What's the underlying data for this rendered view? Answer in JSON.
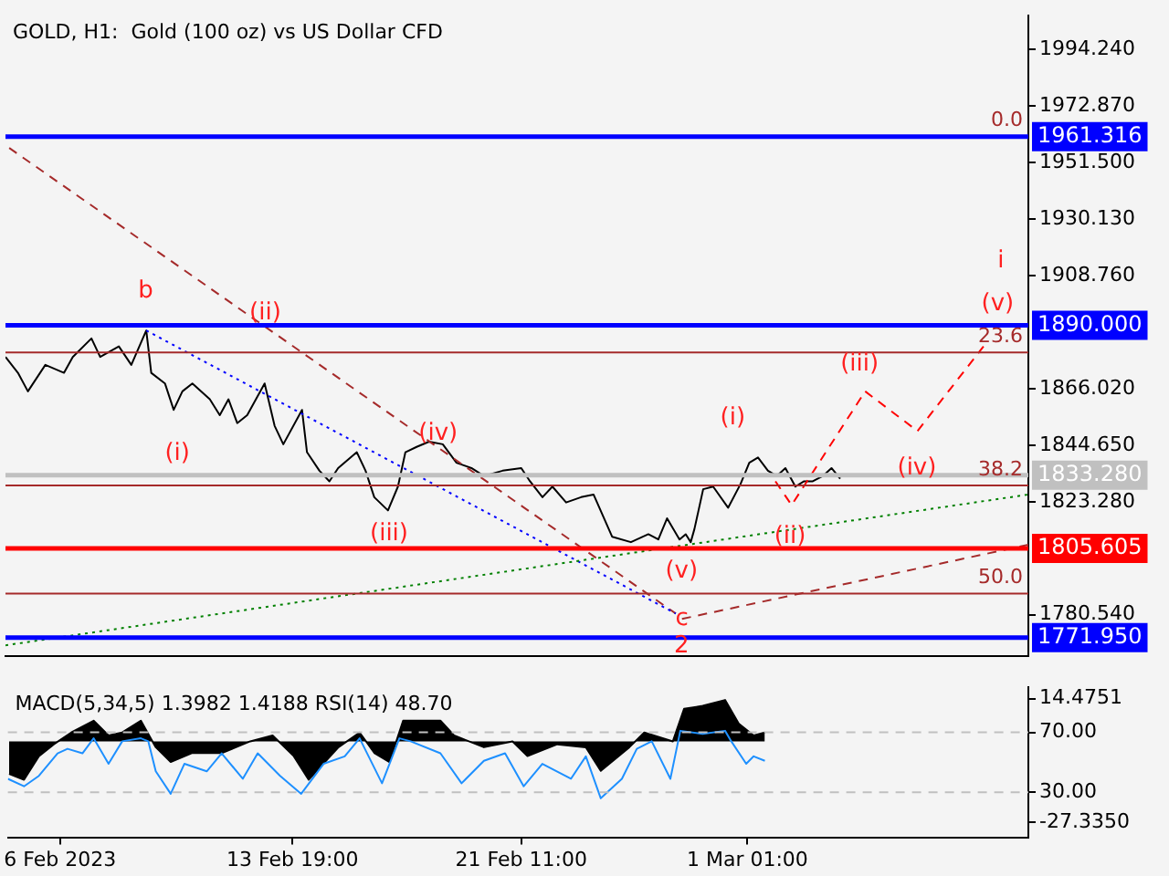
{
  "chart_data": [
    {
      "type": "line",
      "title": "GOLD, H1:  Gold (100 oz) vs US Dollar CFD",
      "tick_labels": "y",
      "marker": "none",
      "xlim": [
        "2023-02-04T06:00",
        "2023-03-10T11:00"
      ],
      "ylim": [
        1765,
        2007
      ],
      "yticks": [
        {
          "value": 1994.24,
          "label": "1994.240"
        },
        {
          "value": 1972.87,
          "label": "1972.870"
        },
        {
          "value": 1951.5,
          "label": "1951.500"
        },
        {
          "value": 1930.13,
          "label": "1930.130"
        },
        {
          "value": 1908.76,
          "label": "1908.760"
        },
        {
          "value": 1866.02,
          "label": "1866.020"
        },
        {
          "value": 1844.65,
          "label": "1844.650"
        },
        {
          "value": 1823.28,
          "label": "1823.280"
        },
        {
          "value": 1780.54,
          "label": "1780.540"
        }
      ],
      "series": [
        {
          "color": "#000000",
          "line_style": "solid",
          "x": [
            "2023-02-04T06:00",
            "2023-02-04T16:00",
            "2023-02-05T00:00",
            "2023-02-05T14:00",
            "2023-02-06T05:00",
            "2023-02-06T12:00",
            "2023-02-07T03:00",
            "2023-02-07T10:00",
            "2023-02-08T01:00",
            "2023-02-08T11:00",
            "2023-02-08T23:00",
            "2023-02-09T03:00",
            "2023-02-09T14:00",
            "2023-02-09T21:00",
            "2023-02-10T04:00",
            "2023-02-10T12:00",
            "2023-02-11T02:00",
            "2023-02-11T10:00",
            "2023-02-11T17:00",
            "2023-02-12T00:00",
            "2023-02-12T08:00",
            "2023-02-12T22:00",
            "2023-02-13T06:00",
            "2023-02-13T13:00",
            "2023-02-14T04:00",
            "2023-02-14T08:00",
            "2023-02-14T18:00",
            "2023-02-15T02:00",
            "2023-02-15T09:00",
            "2023-02-16T00:00",
            "2023-02-16T07:00",
            "2023-02-16T14:00",
            "2023-02-17T01:00",
            "2023-02-17T09:00",
            "2023-02-17T15:00",
            "2023-02-18T00:00",
            "2023-02-18T10:00",
            "2023-02-18T21:00",
            "2023-02-19T08:00",
            "2023-02-19T20:00",
            "2023-02-20T06:00",
            "2023-02-20T21:00",
            "2023-02-21T12:00",
            "2023-02-21T19:00",
            "2023-02-22T05:00",
            "2023-02-22T13:00",
            "2023-02-23T00:00",
            "2023-02-23T12:00",
            "2023-02-23T22:00",
            "2023-02-24T13:00",
            "2023-02-25T04:00",
            "2023-02-25T18:00",
            "2023-02-26T02:00",
            "2023-02-26T09:00",
            "2023-02-26T19:00",
            "2023-02-27T00:00",
            "2023-02-27T04:00",
            "2023-02-27T07:00",
            "2023-02-27T14:00",
            "2023-02-27T22:00",
            "2023-02-28T10:00",
            "2023-02-28T20:00",
            "2023-03-01T03:00",
            "2023-03-01T10:00",
            "2023-03-01T18:00",
            "2023-03-02T01:00",
            "2023-03-02T08:00",
            "2023-03-02T16:00",
            "2023-03-02T23:00",
            "2023-03-03T06:00",
            "2023-03-03T14:00",
            "2023-03-03T21:00",
            "2023-03-04T04:00"
          ],
          "values": [
            1878,
            1872,
            1865,
            1875,
            1872,
            1878,
            1885,
            1878,
            1882,
            1875,
            1888,
            1872,
            1868,
            1858,
            1865,
            1868,
            1862,
            1856,
            1862,
            1853,
            1856,
            1868,
            1852,
            1845,
            1858,
            1842,
            1835,
            1831,
            1836,
            1842,
            1835,
            1825,
            1820,
            1829,
            1842,
            1844,
            1846,
            1845,
            1838,
            1836,
            1833,
            1835,
            1836,
            1831,
            1825,
            1829,
            1823,
            1825,
            1826,
            1810,
            1808,
            1811,
            1809,
            1817,
            1809,
            1811,
            1808,
            1813,
            1828,
            1829,
            1821,
            1830,
            1838,
            1840,
            1835,
            1833,
            1836,
            1829,
            1831,
            1831,
            1833,
            1836,
            1832
          ]
        },
        {
          "color": "#ff0000",
          "line_style": "dashed",
          "x": [
            "2023-03-02T00:00",
            "2023-03-02T13:00",
            "2023-03-05T00:00",
            "2023-03-06T18:00",
            "2023-03-08T23:00"
          ],
          "values": [
            1831,
            1822,
            1865,
            1850,
            1882
          ]
        },
        {
          "color": "#a52a2a",
          "line_style": "dashed",
          "x": [
            "2023-02-04T09:00",
            "2023-02-26T16:00"
          ],
          "values": [
            1957,
            1781
          ]
        },
        {
          "color": "#0000ff",
          "line_style": "dotted",
          "x": [
            "2023-02-08T23:00",
            "2023-02-26T16:00"
          ],
          "values": [
            1888,
            1781
          ]
        },
        {
          "color": "#008000",
          "line_style": "dotted",
          "x": [
            "2023-02-04T06:00",
            "2023-03-10T11:00"
          ],
          "values": [
            1769,
            1826
          ]
        },
        {
          "color": "#a52a2a",
          "line_style": "dashed",
          "x": [
            "2023-02-26T21:00",
            "2023-03-10T11:00"
          ],
          "values": [
            1779,
            1807
          ]
        }
      ],
      "ref_lines": [
        {
          "axis": "y",
          "value": 1961.316,
          "label": "1961.316",
          "color": "#0000ff"
        },
        {
          "axis": "y",
          "value": 1890,
          "label": "1890.000",
          "color": "#0000ff"
        },
        {
          "axis": "y",
          "value": 1833.28,
          "label": "1833.280",
          "color": "#c0c0c0"
        },
        {
          "axis": "y",
          "value": 1805.605,
          "label": "1805.605",
          "color": "#ff0000"
        },
        {
          "axis": "y",
          "value": 1771.95,
          "label": "1771.950",
          "color": "#0000ff"
        },
        {
          "axis": "y",
          "value": 1879.7,
          "color": "#a52a2a"
        },
        {
          "axis": "y",
          "value": 1829.4,
          "color": "#a52a2a"
        },
        {
          "axis": "y",
          "value": 1788.6,
          "color": "#a52a2a"
        }
      ],
      "annotations": [
        "b",
        "(ii)",
        "(i)",
        "(iv)",
        "(iii)",
        "(v)",
        {
          "text": "c",
          "x": "2023-02-26T21:00",
          "y": 1779
        },
        "2",
        "(i)",
        "(ii)",
        "(iii)",
        "(iv)",
        "(v)",
        "i",
        {
          "text": "0.0",
          "y": 1961.316
        },
        {
          "text": "23.6",
          "y": 1879.7
        },
        {
          "text": "38.2",
          "y": 1829.4
        },
        {
          "text": "50.0",
          "y": 1788.6
        }
      ]
    },
    {
      "type": "line",
      "title": "MACD(5,34,5) 1.3982 1.4188 RSI(14) 48.70",
      "marker": "none",
      "xlim": [
        "2023-02-04T06:00",
        "2023-03-10T11:00"
      ],
      "xticks": [
        {
          "value": "2023-02-06T00:00",
          "label": "6 Feb 2023"
        },
        {
          "value": "2023-02-13T19:00",
          "label": "13 Feb 19:00"
        },
        {
          "value": "2023-02-21T11:00",
          "label": "21 Feb 11:00"
        },
        {
          "value": "2023-03-01T01:00",
          "label": "1 Mar 01:00"
        }
      ],
      "ylim": [
        -32.5,
        18.3
      ],
      "yticks": [
        {
          "value": 14.4751,
          "label": "14.4751"
        },
        {
          "value": -27.335,
          "label": "-27.3350"
        }
      ],
      "y2lim": [
        0,
        100
      ],
      "y2ticks": [
        {
          "value": 70,
          "label": "70.00"
        },
        {
          "value": 30,
          "label": "30.00"
        }
      ],
      "series": [
        {
          "type": "area",
          "color": "#000000",
          "x": [
            "2023-02-04T07:00",
            "2023-02-04T19:00",
            "2023-02-05T07:00",
            "2023-02-05T19:00",
            "2023-02-06T09:00",
            "2023-02-07T03:00",
            "2023-02-07T15:00",
            "2023-02-08T02:00",
            "2023-02-08T17:00",
            "2023-02-09T05:00",
            "2023-02-09T17:00",
            "2023-02-10T10:00",
            "2023-02-11T10:00",
            "2023-02-12T09:00",
            "2023-02-13T03:00",
            "2023-02-13T20:00",
            "2023-02-14T08:00",
            "2023-02-15T08:00",
            "2023-02-16T01:00",
            "2023-02-16T13:00",
            "2023-02-17T01:00",
            "2023-02-17T12:00",
            "2023-02-18T18:00",
            "2023-02-19T05:00",
            "2023-02-20T05:00",
            "2023-02-21T04:00",
            "2023-02-21T16:00",
            "2023-02-22T16:00",
            "2023-02-23T15:00",
            "2023-02-24T03:00",
            "2023-02-25T02:00",
            "2023-02-25T14:00",
            "2023-02-26T13:00",
            "2023-02-26T22:00",
            "2023-02-27T13:00",
            "2023-02-28T07:00",
            "2023-02-28T18:00",
            "2023-03-01T06:00",
            "2023-03-01T15:00"
          ],
          "values": [
            -11,
            -13,
            -5,
            -1,
            3,
            7,
            2,
            3,
            7,
            -2,
            -7,
            -4,
            -4,
            0,
            2,
            -5,
            -13,
            -2,
            3,
            -4,
            -7,
            7,
            7,
            2,
            -2,
            0,
            -5,
            -1,
            -2,
            -10,
            -2,
            3,
            0,
            11,
            12,
            14,
            6,
            2,
            3
          ]
        },
        {
          "axis": "y2",
          "color": "#1e90ff",
          "x": [
            "2023-02-04T06:00",
            "2023-02-04T19:00",
            "2023-02-05T07:00",
            "2023-02-05T22:00",
            "2023-02-06T06:00",
            "2023-02-06T18:00",
            "2023-02-07T03:00",
            "2023-02-07T15:00",
            "2023-02-08T02:00",
            "2023-02-08T17:00",
            "2023-02-08T23:00",
            "2023-02-09T05:00",
            "2023-02-09T17:00",
            "2023-02-10T04:00",
            "2023-02-10T22:00",
            "2023-02-11T10:00",
            "2023-02-12T03:00",
            "2023-02-12T15:00",
            "2023-02-13T09:00",
            "2023-02-14T02:00",
            "2023-02-14T20:00",
            "2023-02-15T13:00",
            "2023-02-16T01:00",
            "2023-02-16T19:00",
            "2023-02-17T09:00",
            "2023-02-17T18:00",
            "2023-02-18T18:00",
            "2023-02-19T11:00",
            "2023-02-20T05:00",
            "2023-02-20T22:00",
            "2023-02-21T13:00",
            "2023-02-22T04:00",
            "2023-02-23T03:00",
            "2023-02-23T15:00",
            "2023-02-24T03:00",
            "2023-02-24T20:00",
            "2023-02-25T08:00",
            "2023-02-25T20:00",
            "2023-02-26T11:00",
            "2023-02-26T19:00",
            "2023-02-27T13:00",
            "2023-02-28T07:00",
            "2023-02-28T12:00",
            "2023-03-01T00:00",
            "2023-03-01T06:00",
            "2023-03-01T15:00"
          ],
          "values": [
            39,
            34,
            41,
            56,
            59,
            56,
            66,
            49,
            64,
            66,
            64,
            44,
            29,
            49,
            44,
            56,
            39,
            56,
            41,
            29,
            49,
            54,
            66,
            36,
            66,
            64,
            56,
            36,
            51,
            56,
            34,
            49,
            39,
            54,
            26,
            39,
            59,
            64,
            39,
            71,
            69,
            71,
            64,
            49,
            54,
            51
          ]
        }
      ],
      "ref_lines": [
        {
          "axis": "y2",
          "value": 70,
          "color": "#c0c0c0",
          "line_style": "dashed"
        },
        {
          "axis": "y2",
          "value": 30,
          "color": "#c0c0c0",
          "line_style": "dashed"
        }
      ]
    }
  ]
}
